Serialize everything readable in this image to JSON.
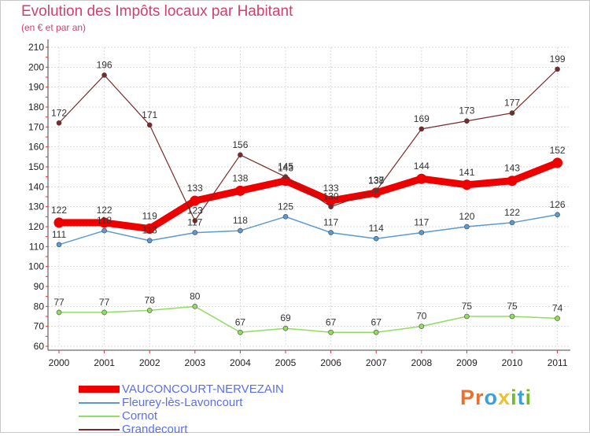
{
  "title": "Evolution des Impôts locaux par Habitant",
  "subtitle": "(en € et par an)",
  "logo": {
    "letters": [
      "P",
      "r",
      "o",
      "x",
      "i",
      "t",
      "i"
    ],
    "colors": [
      "#e8722d",
      "#e8722d",
      "#3b9fd8",
      "#e8c230",
      "#76b82a",
      "#3b9fd8",
      "#76b82a"
    ]
  },
  "chart_data": {
    "type": "line",
    "x": [
      "2000",
      "2001",
      "2002",
      "2003",
      "2004",
      "2005",
      "2006",
      "2007",
      "2008",
      "2009",
      "2010",
      "2011"
    ],
    "ylim": [
      60,
      210
    ],
    "yticks": [
      "60",
      "70",
      "80",
      "90",
      "100",
      "110",
      "120",
      "130",
      "140",
      "150",
      "160",
      "170",
      "180",
      "190",
      "200",
      "210"
    ],
    "grid": true,
    "series": [
      {
        "name": "VAUCONCOURT-NERVEZAIN",
        "color": "#ee0000",
        "width": 9,
        "values": [
          122,
          122,
          119,
          133,
          138,
          143,
          133,
          137,
          144,
          141,
          143,
          152
        ]
      },
      {
        "name": "Fleurey-lès-Lavoncourt",
        "color": "#5a9ad0",
        "width": 1.5,
        "values": [
          111,
          118,
          113,
          117,
          118,
          125,
          117,
          114,
          117,
          120,
          122,
          126
        ]
      },
      {
        "name": "Cornot",
        "color": "#90dd60",
        "width": 1.5,
        "values": [
          77,
          77,
          78,
          80,
          67,
          69,
          67,
          67,
          70,
          75,
          75,
          74
        ]
      },
      {
        "name": "Grandecourt",
        "color": "#7a2a2a",
        "width": 1.2,
        "values": [
          172,
          196,
          171,
          123,
          156,
          145,
          130,
          138,
          169,
          173,
          177,
          199
        ]
      }
    ],
    "labels": {
      "VAUCONCOURT-NERVEZAIN": [
        "122",
        "122",
        "119",
        "133",
        "138",
        "143",
        "133",
        "137",
        "144",
        "141",
        "143",
        "152"
      ],
      "Fleurey-lès-Lavoncourt": [
        "111",
        "118",
        "113",
        "117",
        "118",
        "125",
        "117",
        "114",
        "117",
        "120",
        "122",
        "126"
      ],
      "Cornot": [
        "77",
        "77",
        "78",
        "80",
        "67",
        "69",
        "67",
        "67",
        "70",
        "75",
        "75",
        "74"
      ],
      "Grandecourt": [
        "172",
        "196",
        "171",
        "123",
        "156",
        "145",
        "130",
        "138",
        "169",
        "173",
        "177",
        "199"
      ]
    }
  }
}
